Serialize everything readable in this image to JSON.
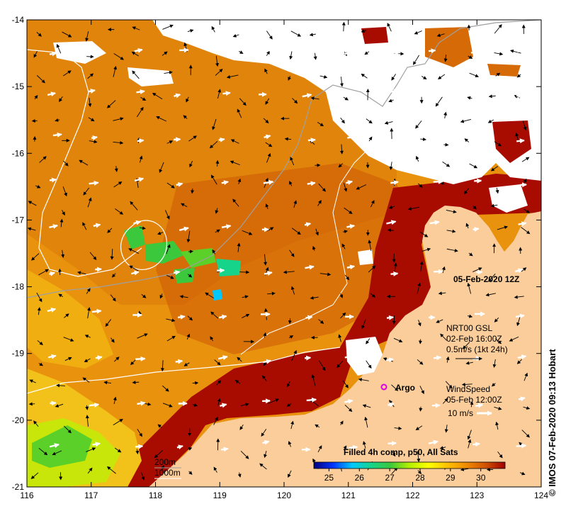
{
  "map": {
    "date_label": "05-Feb-2020 12Z",
    "x_ticks": [
      "116",
      "117",
      "118",
      "119",
      "120",
      "121",
      "122",
      "123",
      "124"
    ],
    "y_ticks": [
      "-14",
      "-15",
      "-16",
      "-17",
      "-18",
      "-19",
      "-20",
      "-21"
    ],
    "credit": "© IMOS 07-Feb-2020 09:13 Hobart"
  },
  "legend": {
    "current": {
      "title": "NRT00 GSL",
      "time": "02-Feb 16:00Z",
      "scale": "0.5m/s (1kt 24h)"
    },
    "wind": {
      "title": "WindSpeed",
      "time": "05-Feb 12:00Z",
      "scale": "10 m/s"
    },
    "argo_label": "Argo",
    "isobaths": [
      "200m",
      "1000m"
    ]
  },
  "colorbar": {
    "title": "Filled 4h comp, p50, All Sats",
    "ticks": [
      "25",
      "26",
      "27",
      "28",
      "29",
      "30"
    ],
    "range": [
      24.5,
      30.8
    ]
  },
  "colors": {
    "land": "#fbcd9b",
    "cloud": "#ffffff",
    "sst_stops": [
      "#00007a",
      "#0033ff",
      "#00c8ff",
      "#16d48a",
      "#3cc83c",
      "#b4f000",
      "#ffff00",
      "#ffc000",
      "#f08a00",
      "#d05000",
      "#a00000"
    ],
    "argo": "#e000e0"
  }
}
